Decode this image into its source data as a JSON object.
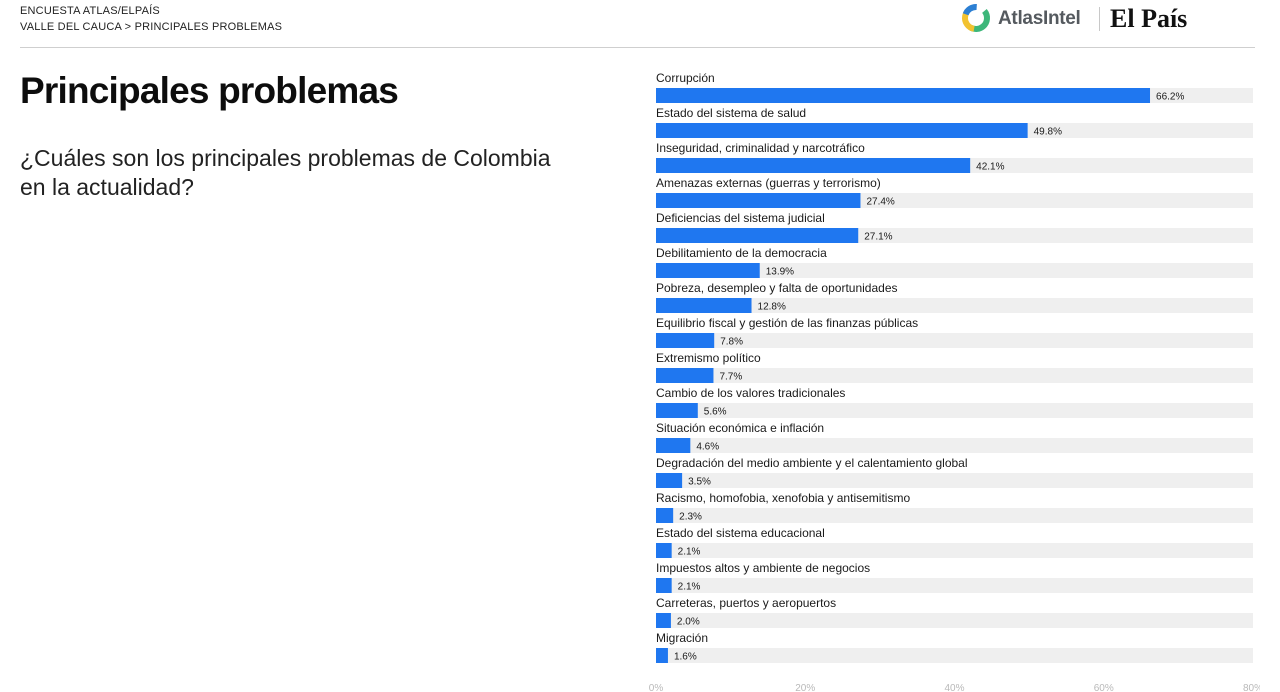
{
  "header": {
    "survey_line": "ENCUESTA ATLAS/ELPAÍS",
    "breadcrumb": "VALLE DEL CAUCA > PRINCIPALES PROBLEMAS",
    "logo_atlas": "AtlasIntel",
    "logo_elpais": "El País"
  },
  "main": {
    "title": "Principales problemas",
    "question": "¿Cuáles son los principales problemas de Colombia en la actualidad?"
  },
  "colors": {
    "bar": "#1f77f0",
    "track": "#efefef",
    "atlas_green": "#3db77a",
    "atlas_yellow": "#f2c230",
    "atlas_blue": "#2c7fd3"
  },
  "chart_data": {
    "type": "bar",
    "orientation": "horizontal",
    "categories": [
      "Corrupción",
      "Estado del sistema de salud",
      "Inseguridad, criminalidad y narcotráfico",
      "Amenazas externas (guerras y terrorismo)",
      "Deficiencias del sistema judicial",
      "Debilitamiento de la democracia",
      "Pobreza, desempleo y falta de oportunidades",
      "Equilibrio fiscal y gestión de las finanzas públicas",
      "Extremismo político",
      "Cambio de los valores tradicionales",
      "Situación económica e inflación",
      "Degradación del medio ambiente y el calentamiento global",
      "Racismo, homofobia, xenofobia y antisemitismo",
      "Estado del sistema educacional",
      "Impuestos altos y ambiente de negocios",
      "Carreteras, puertos y aeropuertos",
      "Migración"
    ],
    "values": [
      66.2,
      49.8,
      42.1,
      27.4,
      27.1,
      13.9,
      12.8,
      7.8,
      7.7,
      5.6,
      4.6,
      3.5,
      2.3,
      2.1,
      2.1,
      2.0,
      1.6
    ],
    "value_labels": [
      "66.2%",
      "49.8%",
      "42.1%",
      "27.4%",
      "27.1%",
      "13.9%",
      "12.8%",
      "7.8%",
      "7.7%",
      "5.6%",
      "4.6%",
      "3.5%",
      "2.3%",
      "2.1%",
      "2.1%",
      "2.0%",
      "1.6%"
    ],
    "xlim": [
      0,
      80
    ],
    "x_ticks": [
      0,
      20,
      40,
      60,
      80
    ],
    "x_tick_labels": [
      "0%",
      "20%",
      "40%",
      "60%",
      "80%"
    ],
    "grid": false
  }
}
